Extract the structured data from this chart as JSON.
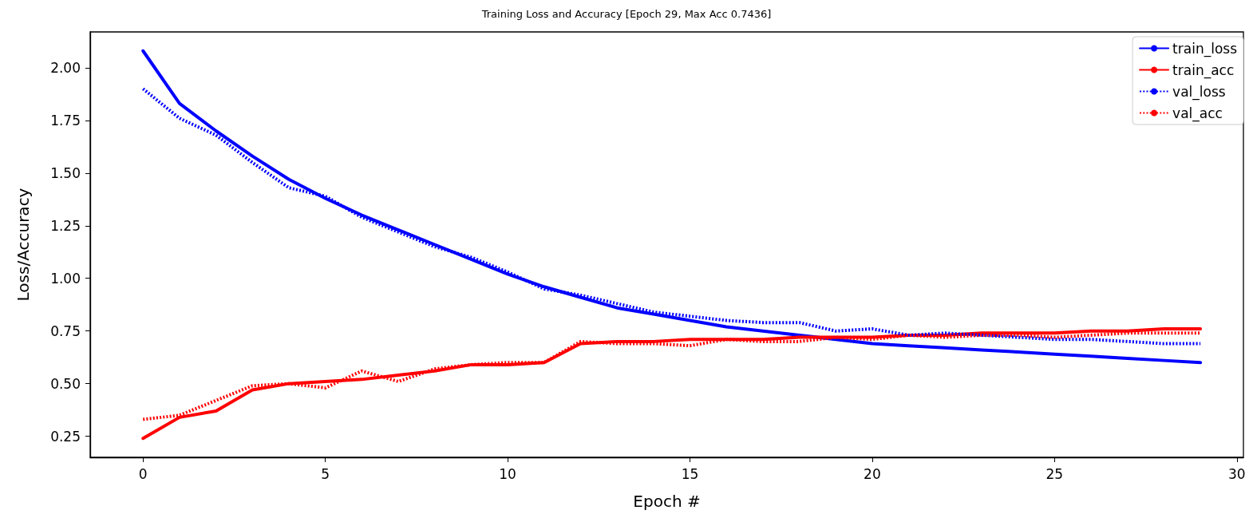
{
  "chart_data": {
    "type": "line",
    "title": "Training Loss and Accuracy [Epoch 29, Max Acc 0.7436]",
    "xlabel": "Epoch #",
    "ylabel": "Loss/Accuracy",
    "x": [
      0,
      1,
      2,
      3,
      4,
      5,
      6,
      7,
      8,
      9,
      10,
      11,
      12,
      13,
      14,
      15,
      16,
      17,
      18,
      19,
      20,
      21,
      22,
      23,
      24,
      25,
      26,
      27,
      28,
      29
    ],
    "series": [
      {
        "name": "train_loss",
        "color": "#0000ff",
        "line_style": "solid",
        "values": [
          2.08,
          1.83,
          1.7,
          1.58,
          1.47,
          1.38,
          1.3,
          1.23,
          1.16,
          1.09,
          1.02,
          0.96,
          0.91,
          0.86,
          0.83,
          0.8,
          0.77,
          0.75,
          0.73,
          0.71,
          0.69,
          0.68,
          0.67,
          0.66,
          0.65,
          0.64,
          0.63,
          0.62,
          0.61,
          0.6
        ]
      },
      {
        "name": "train_acc",
        "color": "#ff0000",
        "line_style": "solid",
        "values": [
          0.24,
          0.34,
          0.37,
          0.47,
          0.5,
          0.51,
          0.52,
          0.54,
          0.56,
          0.59,
          0.59,
          0.6,
          0.69,
          0.7,
          0.7,
          0.71,
          0.71,
          0.71,
          0.72,
          0.72,
          0.72,
          0.73,
          0.73,
          0.74,
          0.74,
          0.74,
          0.75,
          0.75,
          0.76,
          0.76
        ]
      },
      {
        "name": "val_loss",
        "color": "#0000ff",
        "line_style": "dotted",
        "values": [
          1.9,
          1.76,
          1.68,
          1.55,
          1.43,
          1.39,
          1.29,
          1.22,
          1.15,
          1.1,
          1.03,
          0.95,
          0.92,
          0.88,
          0.84,
          0.82,
          0.8,
          0.79,
          0.79,
          0.75,
          0.76,
          0.73,
          0.74,
          0.73,
          0.72,
          0.71,
          0.71,
          0.7,
          0.69,
          0.69
        ]
      },
      {
        "name": "val_acc",
        "color": "#ff0000",
        "line_style": "dotted",
        "values": [
          0.33,
          0.35,
          0.42,
          0.49,
          0.5,
          0.48,
          0.56,
          0.51,
          0.57,
          0.59,
          0.6,
          0.6,
          0.7,
          0.69,
          0.69,
          0.68,
          0.71,
          0.7,
          0.7,
          0.72,
          0.71,
          0.73,
          0.72,
          0.73,
          0.73,
          0.72,
          0.73,
          0.74,
          0.74,
          0.74
        ]
      }
    ],
    "xlim": [
      -1.45,
      30.18
    ],
    "xticks": [
      0,
      5,
      10,
      15,
      20,
      25,
      30
    ],
    "ylim": [
      0.15,
      2.17
    ],
    "yticks": [
      0.25,
      {
        "value": 0.5,
        "label": "0.50"
      },
      {
        "value": 0.75,
        "label": "0.75"
      },
      {
        "value": 1,
        "label": "1.00"
      },
      {
        "value": 1.25,
        "label": "1.25"
      },
      {
        "value": 1.5,
        "label": "1.50"
      },
      {
        "value": 1.75,
        "label": "1.75"
      },
      {
        "value": 2,
        "label": "2.00"
      }
    ],
    "grid": false,
    "legend": "top right",
    "marker": "none"
  }
}
